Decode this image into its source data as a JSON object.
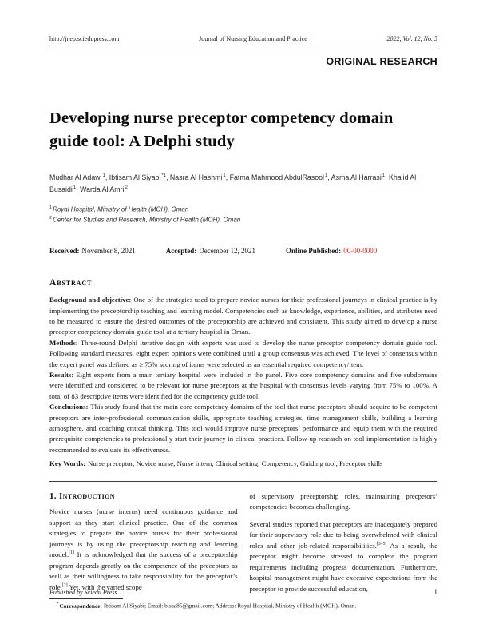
{
  "colors": {
    "published_date_red": "#e8251c",
    "text": "#151515"
  },
  "header": {
    "url": "http://jnep.sciedupress.com",
    "journal": "Journal of Nursing Education and Practice",
    "issue": "2022, Vol. 12, No. 5",
    "article_type": "ORIGINAL RESEARCH"
  },
  "article": {
    "title": "Developing nurse preceptor competency domain guide tool: A Delphi study",
    "author_separator": ", ",
    "authors": [
      {
        "name": "Mudhar Al Adawi",
        "sup": "1"
      },
      {
        "name": "Ibtisam Al Siyabi",
        "sup": "*1"
      },
      {
        "name": "Nasra Al Hashmi",
        "sup": "1"
      },
      {
        "name": "Fatma Mahmood AbdulRasool",
        "sup": "1"
      },
      {
        "name": "Asma Al Harrasi",
        "sup": "1"
      },
      {
        "name": "Khalid Al Busaidi",
        "sup": "1"
      },
      {
        "name": "Warda Al Amri",
        "sup": "2"
      }
    ],
    "affiliations": [
      {
        "sup": "1",
        "text": "Royal Hospital, Ministry of Health (MOH), Oman"
      },
      {
        "sup": "2",
        "text": "Center for Studies and Research, Ministry of Health (MOH), Oman"
      }
    ],
    "dates": {
      "received_label": "Received:",
      "received": "November 8, 2021",
      "accepted_label": "Accepted:",
      "accepted": "December 12, 2021",
      "published_label": "Online Published:",
      "published": "00-00-0000"
    }
  },
  "abstract": {
    "heading": "Abstract",
    "sections": [
      {
        "label": "Background and objective:",
        "text": "One of the strategies used to prepare novice nurses for their professional journeys in clinical practice is by implementing the preceptorship teaching and learning model. Competencies such as knowledge, experience, abilities, and attributes need to be measured to ensure the desired outcomes of the preceptorship are achieved and consistent. This study aimed to develop a nurse preceptor competency domain guide tool at a tertiary hospital in Oman."
      },
      {
        "label": "Methods:",
        "text": "Three-round Delphi iterative design with experts was used to develop the nurse preceptor competency domain guide tool. Following standard measures, eight expert opinions were combined until a group consensus was achieved. The level of consensus within the expert panel was defined as ≥ 75% scoring of items were selected as an essential required competency/item."
      },
      {
        "label": "Results:",
        "text": "Eight experts from a main tertiary hospital were included in the panel. Five core competency domains and five subdomains were identified and considered to be relevant for nurse preceptors at the hospital with consensus levels varying from 75% to 100%. A total of 83 descriptive items were identified for the competency guide tool."
      },
      {
        "label": "Conclusions:",
        "text": "This study found that the main core competency domains of the tool that nurse preceptors should acquire to be competent preceptors are inter-professional communication skills, appropriate teaching strategies, time management skills, building a learning atmosphere, and coaching critical thinking. This tool would improve nurse preceptors’ performance and equip them with the required prerequisite competencies to professionally start their journey in clinical practices. Follow-up research on tool implementation is highly recommended to evaluate its effectiveness."
      }
    ],
    "keywords_label": "Key Words:",
    "keywords": "Nurse preceptor, Novice nurse, Nurse intern, Clinical setting, Competency, Guiding tool, Preceptor skills"
  },
  "introduction": {
    "heading": "1. Introduction",
    "left_col": {
      "seg1": "Novice nurses (nurse interns) need continuous guidance and support as they start clinical practice. One of the common strategies to prepare the novice nurses for their professional journeys is by using the preceptorship teaching and learning model.",
      "ref1": "[1]",
      "seg2": " It is acknowledged that the success of a preceptorship program depends greatly on the competence of the preceptors as well as their willingness to take responsibility for the preceptor’s role.",
      "ref2": "[2]",
      "seg3": " Yet, with the varied scope"
    },
    "right_col": {
      "para1": "of supervisory preceptorship roles, maintaining precpetors’ competencies becomes challenging.",
      "para2_seg1": "Several studies reported that preceptors are inadequately prepared for their supervisory role due to being overwhelmed with clinical roles and other job-related responsibilities.",
      "para2_ref": "[3–5]",
      "para2_seg2": " As a result, the preceptor might become stressed to complete the program requirements including progress documentation. Furthermore, hospital management might have excessive expectations from the preceptor to provide successful education,"
    }
  },
  "footnote": {
    "marker": "*",
    "label": "Correspondence:",
    "text": "Ibtisam Al Siyabi; Email: bisaa85@gmail.com; Address: Royal Hospital, Ministry of Health (MOH), Oman."
  },
  "footer": {
    "publisher": "Published by Sciedu Press",
    "page_number": "1"
  }
}
